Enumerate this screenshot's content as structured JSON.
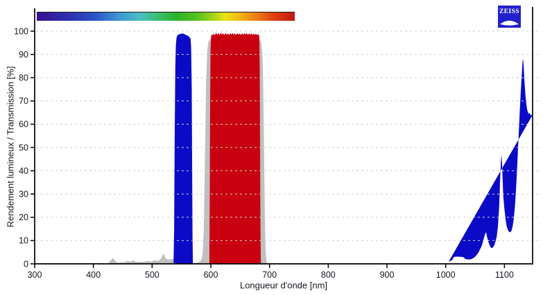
{
  "logo": {
    "text": "ZEISS",
    "bg_color": "#2121CC"
  },
  "chart_data": {
    "type": "area",
    "title": "",
    "xlabel": "Longueur d'onde [nm]",
    "ylabel": "Rendement lumineux / Transmission [%]",
    "xlim": [
      300,
      1148
    ],
    "ylim": [
      0,
      100
    ],
    "x_ticks": [
      300,
      400,
      500,
      600,
      700,
      800,
      900,
      1000,
      1100
    ],
    "y_ticks": [
      0,
      10,
      20,
      30,
      40,
      50,
      60,
      70,
      80,
      90,
      100
    ],
    "grid": "horizontal-dashed",
    "legend": "none",
    "colors": {
      "grid": "#CFCFCF",
      "axis": "#000000",
      "text": "#15151F"
    },
    "spectrum_bar_stops": [
      {
        "pos": "0%",
        "color": "#3A0F8E"
      },
      {
        "pos": "10%",
        "color": "#2E2AAE"
      },
      {
        "pos": "22%",
        "color": "#2A4FC4"
      },
      {
        "pos": "32%",
        "color": "#3E97D2"
      },
      {
        "pos": "40%",
        "color": "#49BFC4"
      },
      {
        "pos": "47%",
        "color": "#3BBE72"
      },
      {
        "pos": "54%",
        "color": "#2BB32B"
      },
      {
        "pos": "62%",
        "color": "#52C21F"
      },
      {
        "pos": "68%",
        "color": "#9ED318"
      },
      {
        "pos": "73%",
        "color": "#E8E414"
      },
      {
        "pos": "79%",
        "color": "#F0B216"
      },
      {
        "pos": "85%",
        "color": "#EE7D16"
      },
      {
        "pos": "91%",
        "color": "#E04612"
      },
      {
        "pos": "100%",
        "color": "#C4150E"
      }
    ],
    "series": [
      {
        "name": "gray-reference-curve",
        "color": "#BFBFBF",
        "points": [
          [
            424,
            0
          ],
          [
            427,
            0.8
          ],
          [
            430,
            1.6
          ],
          [
            433,
            2.4
          ],
          [
            435,
            2.2
          ],
          [
            437,
            1.2
          ],
          [
            440,
            0.6
          ],
          [
            444,
            0.5
          ],
          [
            448,
            0.7
          ],
          [
            452,
            0.6
          ],
          [
            456,
            1.0
          ],
          [
            459,
            1.4
          ],
          [
            462,
            0.9
          ],
          [
            465,
            1.1
          ],
          [
            468,
            1.6
          ],
          [
            471,
            1.0
          ],
          [
            475,
            0.8
          ],
          [
            480,
            0.9
          ],
          [
            485,
            0.8
          ],
          [
            490,
            1.0
          ],
          [
            494,
            1.3
          ],
          [
            497,
            0.9
          ],
          [
            500,
            1.1
          ],
          [
            504,
            1.6
          ],
          [
            508,
            1.2
          ],
          [
            512,
            1.5
          ],
          [
            515,
            2.2
          ],
          [
            517,
            3.2
          ],
          [
            519,
            4.3
          ],
          [
            521,
            3.6
          ],
          [
            523,
            2.4
          ],
          [
            526,
            1.9
          ],
          [
            530,
            1.9
          ],
          [
            533,
            2.1
          ],
          [
            536,
            1.9
          ],
          [
            539,
            1.2
          ],
          [
            543,
            0.7
          ],
          [
            548,
            0.5
          ],
          [
            555,
            0.4
          ],
          [
            562,
            0.4
          ],
          [
            570,
            0.4
          ],
          [
            576,
            0.5
          ],
          [
            581,
            0.9
          ],
          [
            584,
            1.8
          ],
          [
            586,
            4
          ],
          [
            588,
            14
          ],
          [
            590,
            45
          ],
          [
            592,
            78
          ],
          [
            594,
            92
          ],
          [
            596,
            95.5
          ],
          [
            599,
            96.8
          ],
          [
            605,
            97
          ],
          [
            615,
            97.2
          ],
          [
            630,
            97.2
          ],
          [
            645,
            97.2
          ],
          [
            660,
            97.1
          ],
          [
            672,
            97
          ],
          [
            680,
            96.8
          ],
          [
            684,
            96.3
          ],
          [
            686,
            95
          ],
          [
            688,
            90
          ],
          [
            689,
            80
          ],
          [
            690,
            62
          ],
          [
            691,
            40
          ],
          [
            692,
            20
          ],
          [
            693,
            8
          ],
          [
            694,
            3
          ],
          [
            696,
            0
          ]
        ]
      },
      {
        "name": "blue-band-540-568nm",
        "color": "#0B0BC7",
        "points": [
          [
            536.5,
            0
          ],
          [
            537.5,
            15
          ],
          [
            538.5,
            55
          ],
          [
            539.5,
            85
          ],
          [
            540.5,
            94
          ],
          [
            541.5,
            97
          ],
          [
            543,
            98.2
          ],
          [
            545,
            98.6
          ],
          [
            548,
            98.8
          ],
          [
            551,
            99
          ],
          [
            554,
            98.9
          ],
          [
            556,
            98.6
          ],
          [
            558,
            98.3
          ],
          [
            560,
            98.2
          ],
          [
            562,
            97.8
          ],
          [
            564,
            97.3
          ],
          [
            565.5,
            96.8
          ],
          [
            566.5,
            93
          ],
          [
            567.5,
            75
          ],
          [
            568.2,
            40
          ],
          [
            568.8,
            12
          ],
          [
            569.5,
            0
          ]
        ]
      },
      {
        "name": "red-band-600-685nm",
        "color": "#C8000F",
        "points": [
          [
            597.5,
            0
          ],
          [
            598.2,
            30
          ],
          [
            598.8,
            70
          ],
          [
            599.5,
            92
          ],
          [
            600.5,
            97.8
          ],
          [
            602,
            98.8
          ],
          [
            603.5,
            98.1
          ],
          [
            605,
            99.1
          ],
          [
            607,
            98.2
          ],
          [
            609,
            99.3
          ],
          [
            611,
            98.4
          ],
          [
            613,
            99.2
          ],
          [
            615,
            98.3
          ],
          [
            617,
            99.4
          ],
          [
            619,
            98.5
          ],
          [
            621,
            99.1
          ],
          [
            623,
            98.3
          ],
          [
            625,
            99.3
          ],
          [
            627,
            98.4
          ],
          [
            629,
            99.0
          ],
          [
            631,
            98.3
          ],
          [
            633,
            99.2
          ],
          [
            635,
            98.5
          ],
          [
            637,
            99.3
          ],
          [
            639,
            98.4
          ],
          [
            641,
            99.1
          ],
          [
            643,
            98.3
          ],
          [
            645,
            99.2
          ],
          [
            647,
            98.5
          ],
          [
            649,
            99.0
          ],
          [
            651,
            98.3
          ],
          [
            653,
            99.2
          ],
          [
            655,
            98.4
          ],
          [
            657,
            99.1
          ],
          [
            659,
            98.5
          ],
          [
            661,
            99.2
          ],
          [
            663,
            98.4
          ],
          [
            665,
            99.0
          ],
          [
            667,
            98.5
          ],
          [
            669,
            99.1
          ],
          [
            671,
            98.4
          ],
          [
            673,
            98.9
          ],
          [
            675,
            98.5
          ],
          [
            677,
            98.8
          ],
          [
            679,
            98.4
          ],
          [
            681,
            98.6
          ],
          [
            682.5,
            98
          ],
          [
            683.2,
            85
          ],
          [
            683.8,
            55
          ],
          [
            684.3,
            25
          ],
          [
            684.8,
            8
          ],
          [
            685.3,
            0
          ]
        ]
      },
      {
        "name": "blue-infrared-band-1000-1148nm",
        "color": "#0B0BC7",
        "points": [
          [
            1003,
            0
          ],
          [
            1005,
            0.9
          ],
          [
            1008,
            1.3
          ],
          [
            1011,
            1.6
          ],
          [
            1013,
            2.6
          ],
          [
            1015,
            3.0
          ],
          [
            1020,
            3.1
          ],
          [
            1026,
            3.0
          ],
          [
            1030,
            2.9
          ],
          [
            1033,
            2.2
          ],
          [
            1037,
            1.9
          ],
          [
            1042,
            1.9
          ],
          [
            1046,
            2.3
          ],
          [
            1050,
            3.0
          ],
          [
            1054,
            4.2
          ],
          [
            1057,
            5.5
          ],
          [
            1060,
            7.0
          ],
          [
            1062,
            8.2
          ],
          [
            1064,
            10.0
          ],
          [
            1066,
            12.0
          ],
          [
            1068,
            13.5
          ],
          [
            1069,
            13.2
          ],
          [
            1071,
            11.0
          ],
          [
            1073,
            9.2
          ],
          [
            1075,
            7.8
          ],
          [
            1077,
            7.0
          ],
          [
            1079,
            6.8
          ],
          [
            1081,
            7.2
          ],
          [
            1083,
            8.2
          ],
          [
            1085,
            9.8
          ],
          [
            1087,
            12.0
          ],
          [
            1089,
            16.0
          ],
          [
            1091,
            24.0
          ],
          [
            1092,
            31.0
          ],
          [
            1093,
            38.0
          ],
          [
            1094,
            44.0
          ],
          [
            1095,
            47.0
          ],
          [
            1096,
            43.0
          ],
          [
            1097,
            36.0
          ],
          [
            1098,
            29.0
          ],
          [
            1100,
            23.5
          ],
          [
            1102,
            19.0
          ],
          [
            1104,
            16.0
          ],
          [
            1106,
            14.5
          ],
          [
            1108,
            13.8
          ],
          [
            1110,
            13.5
          ],
          [
            1112,
            14.2
          ],
          [
            1114,
            16.0
          ],
          [
            1116,
            19.5
          ],
          [
            1118,
            25.0
          ],
          [
            1120,
            33.0
          ],
          [
            1122,
            43.0
          ],
          [
            1124,
            54.0
          ],
          [
            1126,
            65.0
          ],
          [
            1128,
            75.0
          ],
          [
            1130,
            83.5
          ],
          [
            1131,
            87.0
          ],
          [
            1132,
            88.0
          ],
          [
            1133,
            84.0
          ],
          [
            1134,
            79.0
          ],
          [
            1135,
            75.5
          ],
          [
            1136,
            72.0
          ],
          [
            1137,
            69.5
          ],
          [
            1138,
            67.5
          ],
          [
            1139,
            66.0
          ],
          [
            1141,
            64.5
          ],
          [
            1143,
            64.8
          ],
          [
            1145,
            63.8
          ],
          [
            1146,
            64.2
          ],
          [
            1147,
            63.6
          ],
          [
            1148,
            64.0
          ]
        ]
      }
    ]
  }
}
